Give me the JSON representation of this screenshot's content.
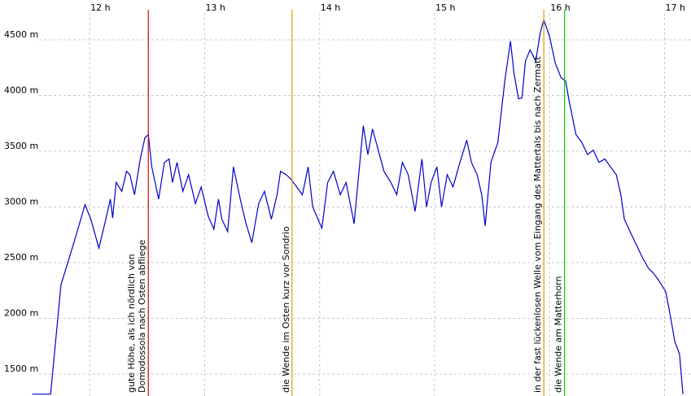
{
  "chart_data": {
    "type": "line",
    "color": "#0000c8",
    "grid": true,
    "xlim": [
      11.22,
      17.23
    ],
    "ylim": [
      1303,
      4858
    ],
    "xticks": [
      {
        "value": 12,
        "label": "12 h"
      },
      {
        "value": 13,
        "label": "13 h"
      },
      {
        "value": 14,
        "label": "14 h"
      },
      {
        "value": 15,
        "label": "15 h"
      },
      {
        "value": 16,
        "label": "16 h"
      },
      {
        "value": 17,
        "label": "17 h"
      }
    ],
    "yticks": [
      {
        "value": 1500,
        "label": "1500 m"
      },
      {
        "value": 2000,
        "label": "2000 m"
      },
      {
        "value": 2500,
        "label": "2500 m"
      },
      {
        "value": 3000,
        "label": "3000 m"
      },
      {
        "value": 3500,
        "label": "3500 m"
      },
      {
        "value": 4000,
        "label": "4000 m"
      },
      {
        "value": 4500,
        "label": "4500 m"
      }
    ],
    "x": [
      11.5,
      11.66,
      11.75,
      11.86,
      11.96,
      12.01,
      12.08,
      12.14,
      12.18,
      12.2,
      12.23,
      12.28,
      12.32,
      12.35,
      12.39,
      12.44,
      12.48,
      12.51,
      12.54,
      12.6,
      12.65,
      12.69,
      12.72,
      12.76,
      12.81,
      12.86,
      12.92,
      12.97,
      13.03,
      13.08,
      13.12,
      13.15,
      13.2,
      13.25,
      13.31,
      13.36,
      13.41,
      13.47,
      13.52,
      13.58,
      13.63,
      13.66,
      13.71,
      13.75,
      13.8,
      13.85,
      13.9,
      13.94,
      14.02,
      14.07,
      14.12,
      14.18,
      14.23,
      14.3,
      14.33,
      14.38,
      14.42,
      14.46,
      14.51,
      14.56,
      14.62,
      14.67,
      14.72,
      14.77,
      14.83,
      14.89,
      14.93,
      14.97,
      15.02,
      15.06,
      15.11,
      15.16,
      15.22,
      15.28,
      15.32,
      15.37,
      15.41,
      15.44,
      15.49,
      15.55,
      15.61,
      15.66,
      15.69,
      15.73,
      15.76,
      15.79,
      15.83,
      15.88,
      15.92,
      15.95,
      16.0,
      16.05,
      16.1,
      16.14,
      16.17,
      16.23,
      16.28,
      16.33,
      16.38,
      16.43,
      16.48,
      16.53,
      16.58,
      16.62,
      16.65,
      16.7,
      16.75,
      16.81,
      16.86,
      16.9,
      16.95,
      17.01,
      17.04,
      17.09,
      17.13,
      17.16
    ],
    "values": [
      1320,
      1320,
      2300,
      2670,
      3020,
      2890,
      2630,
      2890,
      3070,
      2900,
      3220,
      3140,
      3320,
      3290,
      3110,
      3430,
      3620,
      3650,
      3360,
      3070,
      3400,
      3430,
      3220,
      3400,
      3140,
      3290,
      3030,
      3180,
      2920,
      2800,
      3070,
      2890,
      2780,
      3360,
      3070,
      2850,
      2680,
      3030,
      3140,
      2890,
      3110,
      3320,
      3290,
      3250,
      3180,
      3110,
      3360,
      3000,
      2810,
      3220,
      3320,
      3110,
      3220,
      2850,
      3180,
      3730,
      3470,
      3700,
      3510,
      3320,
      3220,
      3110,
      3400,
      3290,
      2960,
      3430,
      3000,
      3220,
      3360,
      3000,
      3290,
      3180,
      3400,
      3600,
      3400,
      3290,
      3110,
      2830,
      3400,
      3580,
      4130,
      4490,
      4200,
      3970,
      3980,
      4310,
      4410,
      4310,
      4570,
      4680,
      4530,
      4290,
      4160,
      4130,
      3950,
      3650,
      3580,
      3470,
      3510,
      3400,
      3430,
      3360,
      3290,
      3110,
      2890,
      2780,
      2670,
      2540,
      2450,
      2410,
      2340,
      2240,
      2080,
      1790,
      1680,
      1320
    ],
    "annotations": [
      {
        "x": 12.51,
        "color": "#e00000",
        "lines": [
          "gute Höhe, als ich nördlich von",
          "Domodossola nach Osten abfliege"
        ]
      },
      {
        "x": 13.76,
        "color": "#e0a000",
        "lines": [
          "die Wende im Osten kurz vor Sondrio"
        ]
      },
      {
        "x": 15.95,
        "color": "#e0a000",
        "lines": [
          "in der fast lückenlosen Welle vom Eingang des Mattertals bis nach Zermatt"
        ]
      },
      {
        "x": 16.13,
        "color": "#00d000",
        "lines": [
          "die Wende am Matterhorn"
        ]
      }
    ]
  }
}
